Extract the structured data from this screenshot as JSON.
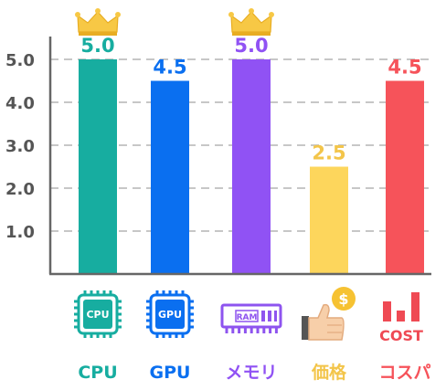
{
  "chart_data": {
    "type": "bar",
    "categories": [
      "CPU",
      "GPU",
      "メモリ",
      "価格",
      "コスパ"
    ],
    "values": [
      5.0,
      4.5,
      5.0,
      2.5,
      4.5
    ],
    "value_labels": [
      "5.0",
      "4.5",
      "5.0",
      "2.5",
      "4.5"
    ],
    "colors": [
      "#17ada0",
      "#0a6ff0",
      "#9052f4",
      "#fdd65c",
      "#f6535a"
    ],
    "label_colors": [
      "#17ada0",
      "#0a6ff0",
      "#9052f4",
      "#f3c54a",
      "#f6535a"
    ],
    "crowned": [
      true,
      false,
      true,
      false,
      false
    ],
    "icons": [
      "cpu-chip-icon",
      "gpu-chip-icon",
      "ram-module-icon",
      "thumbs-up-dollar-icon",
      "cost-bars-icon"
    ],
    "icon_texts": [
      "CPU",
      "GPU",
      "RAM",
      "$",
      "COST"
    ],
    "yticks": [
      "1.0",
      "2.0",
      "3.0",
      "4.0",
      "5.0"
    ],
    "ylim": [
      0,
      5.0
    ],
    "grid": true,
    "title": "",
    "xlabel": "",
    "ylabel": ""
  }
}
